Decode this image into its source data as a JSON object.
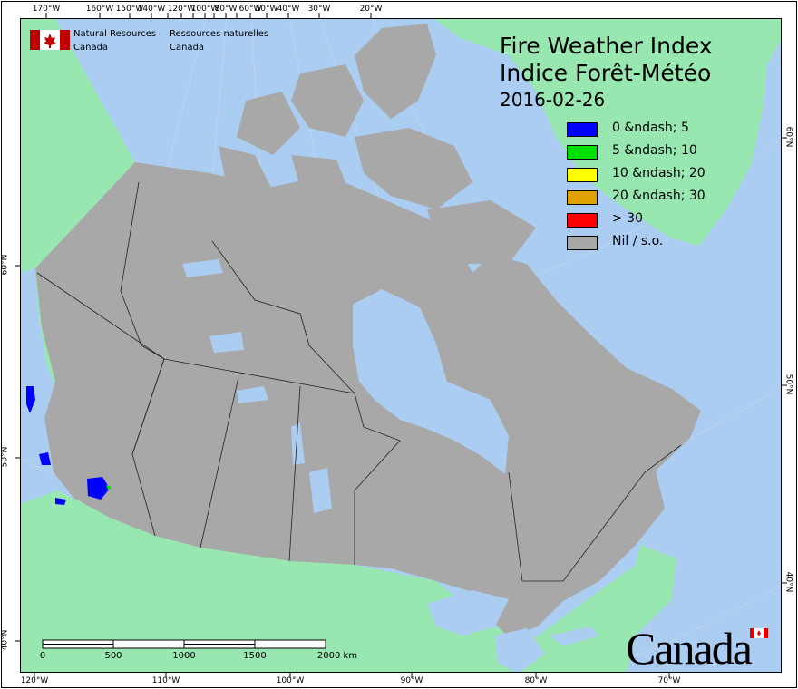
{
  "header": {
    "dept_en": [
      "Natural Resources",
      "Canada"
    ],
    "dept_fr": [
      "Ressources naturelles",
      "Canada"
    ],
    "title_en": "Fire Weather Index",
    "title_fr": "Indice Forêt-Météo",
    "date": "2016-02-26"
  },
  "legend": [
    {
      "label": "0 &ndash; 5",
      "color": "#0000ff"
    },
    {
      "label": "5 &ndash; 10",
      "color": "#00e000"
    },
    {
      "label": "10 &ndash; 20",
      "color": "#ffff00"
    },
    {
      "label": "20 &ndash; 30",
      "color": "#e0a000"
    },
    {
      "label": "> 30",
      "color": "#ff0000"
    },
    {
      "label": "Nil / s.o.",
      "color": "#a8a8a8"
    }
  ],
  "axes": {
    "top": [
      "170°W",
      "160°W",
      "150°W",
      "140°W",
      "120°W",
      "100°W",
      "80°W",
      "60°W",
      "50°W",
      "40°W",
      "30°W",
      "20°W"
    ],
    "bottom": [
      "120°W",
      "110°W",
      "100°W",
      "90°W",
      "80°W",
      "70°W"
    ],
    "left": [
      "60°N",
      "50°N",
      "40°N"
    ],
    "right": [
      "60°N",
      "50°N",
      "40°N"
    ]
  },
  "scale_bar": {
    "labels": [
      "0",
      "500",
      "1000",
      "1500",
      "2000 km"
    ]
  },
  "wordmark": "Canada",
  "colors": {
    "water": "#abcdf2",
    "land_other": "#98e6b0",
    "canada_nil": "#a8a8a8",
    "flag_red": "#c00000"
  }
}
